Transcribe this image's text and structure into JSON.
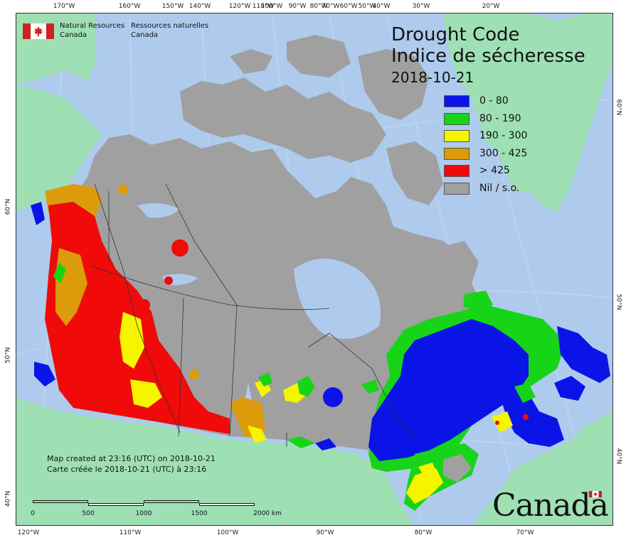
{
  "title": {
    "line1": "Drought Code",
    "line2": "Indice de sécheresse",
    "date": "2018-10-21"
  },
  "agency": {
    "english": [
      "Natural Resources",
      "Canada"
    ],
    "french": [
      "Ressources naturelles",
      "Canada"
    ]
  },
  "legend": [
    {
      "label": "0 - 80",
      "color": "#0a14e6"
    },
    {
      "label": "80 - 190",
      "color": "#18d418"
    },
    {
      "label": "190 - 300",
      "color": "#f5f500"
    },
    {
      "label": "300 - 425",
      "color": "#dc9b0a"
    },
    {
      "label": "> 425",
      "color": "#f00a0a"
    },
    {
      "label": "Nil / s.o.",
      "color": "#a0a0a0"
    }
  ],
  "credits": {
    "line1": "Map created at 23:16 (UTC) on 2018-10-21",
    "line2": "Carte créée le 2018-10-21 (UTC) à 23:16"
  },
  "scale": {
    "labels": [
      "0",
      "500",
      "1000",
      "1500",
      "2000  km"
    ]
  },
  "axes": {
    "top": [
      "170°W",
      "160°W",
      "150°W",
      "140°W",
      "120°W",
      "110°W",
      "100°W",
      "90°W",
      "80°W",
      "70°W",
      "60°W",
      "50°W",
      "40°W",
      "30°W",
      "20°W"
    ],
    "bottom": [
      "120°W",
      "110°W",
      "100°W",
      "90°W",
      "80°W",
      "70°W"
    ],
    "left": [
      "60°N",
      "50°N",
      "40°N"
    ],
    "right": [
      "60°N",
      "50°N",
      "40°N"
    ]
  },
  "wordmark": "Canada",
  "colors": {
    "ocean": "#aecbee",
    "land_other": "#9ee0b4",
    "land_nodata": "#a0a0a0",
    "lakes": "#aecbee"
  }
}
